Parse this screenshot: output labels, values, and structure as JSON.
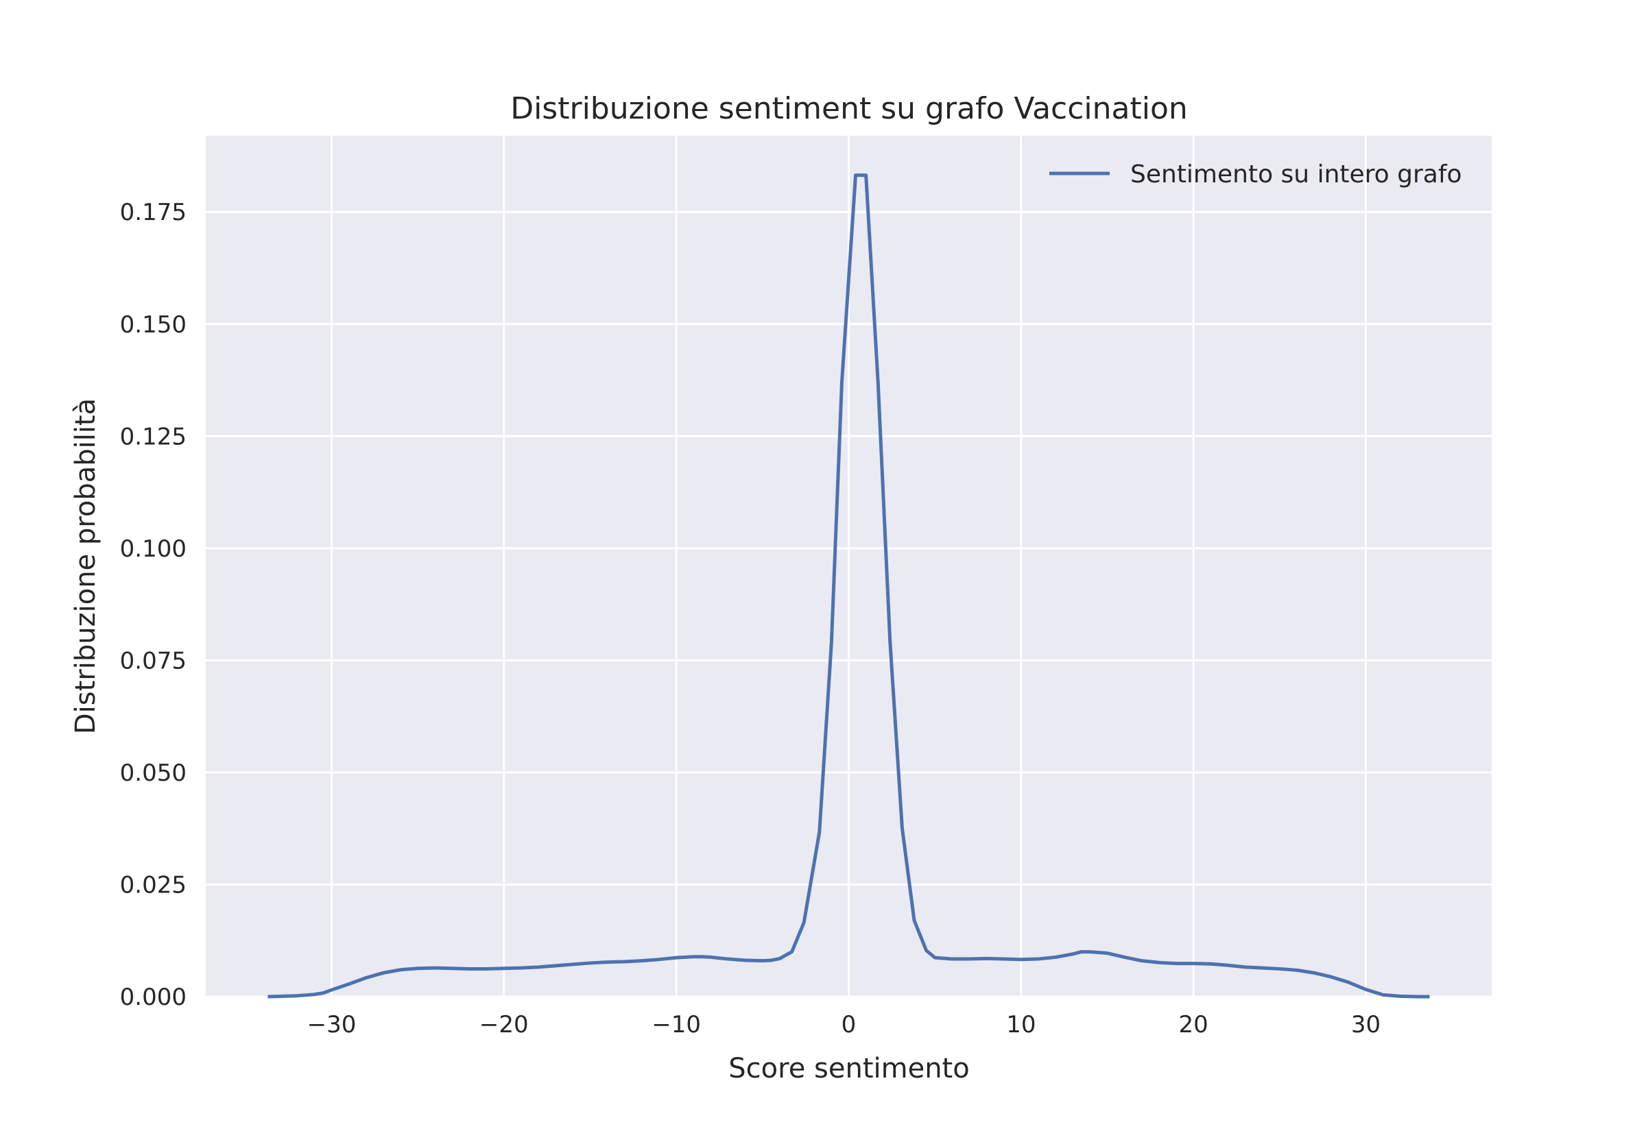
{
  "chart_data": {
    "type": "line",
    "title": "Distribuzione sentiment su grafo Vaccination",
    "xlabel": "Score sentimento",
    "ylabel": "Distribuzione probabilità",
    "xlim": [
      -37.3,
      37.3
    ],
    "ylim": [
      0,
      0.192
    ],
    "xticks": [
      -30,
      -20,
      -10,
      0,
      10,
      20,
      30
    ],
    "xtick_labels": [
      "−30",
      "−20",
      "−10",
      "0",
      "10",
      "20",
      "30"
    ],
    "yticks": [
      0,
      0.025,
      0.05,
      0.075,
      0.1,
      0.125,
      0.15,
      0.175
    ],
    "ytick_labels": [
      "0.000",
      "0.025",
      "0.050",
      "0.075",
      "0.100",
      "0.125",
      "0.150",
      "0.175"
    ],
    "grid": true,
    "legend_position": "top-right",
    "colors": {
      "background": "#eaeaf2",
      "grid": "#ffffff",
      "line": "#4c72b0",
      "text": "#262626"
    },
    "series": [
      {
        "name": "Sentimento su intero grafo",
        "x": [
          -33.7,
          -32,
          -31,
          -30.5,
          -30,
          -29,
          -28,
          -27,
          -26,
          -25,
          -24,
          -23,
          -22,
          -21,
          -20,
          -19,
          -18,
          -17,
          -16,
          -15,
          -14,
          -13,
          -12,
          -11,
          -10,
          -9,
          -8.5,
          -8,
          -7,
          -6,
          -5,
          -4.5,
          -4,
          -3.3,
          -2.6,
          -1.7,
          -1,
          -0.4,
          0.4,
          1,
          1.7,
          2.4,
          3.1,
          3.8,
          4.5,
          5,
          6,
          7,
          8,
          9,
          10,
          11,
          12,
          13,
          13.5,
          14,
          15,
          16,
          17,
          18,
          19,
          20,
          21,
          22,
          23,
          24,
          25,
          26,
          27,
          28,
          29,
          30,
          31,
          32,
          33,
          33.7
        ],
        "y": [
          0,
          0.0002,
          0.0005,
          0.0008,
          0.0015,
          0.0028,
          0.0042,
          0.0053,
          0.006,
          0.0063,
          0.0064,
          0.0063,
          0.0062,
          0.0062,
          0.0063,
          0.0064,
          0.0066,
          0.0069,
          0.0072,
          0.0075,
          0.0077,
          0.0078,
          0.008,
          0.0083,
          0.0087,
          0.0089,
          0.0089,
          0.0088,
          0.0084,
          0.0081,
          0.008,
          0.0081,
          0.0085,
          0.01,
          0.0165,
          0.0367,
          0.079,
          0.137,
          0.1832,
          0.1832,
          0.137,
          0.079,
          0.0376,
          0.017,
          0.0103,
          0.0087,
          0.0084,
          0.0084,
          0.0085,
          0.0084,
          0.0083,
          0.0084,
          0.0088,
          0.0095,
          0.01,
          0.01,
          0.0097,
          0.0088,
          0.008,
          0.0076,
          0.0074,
          0.0074,
          0.0073,
          0.007,
          0.0066,
          0.0064,
          0.0062,
          0.0059,
          0.0053,
          0.0044,
          0.0032,
          0.0016,
          0.0004,
          0.0001,
          0,
          0
        ]
      }
    ]
  }
}
